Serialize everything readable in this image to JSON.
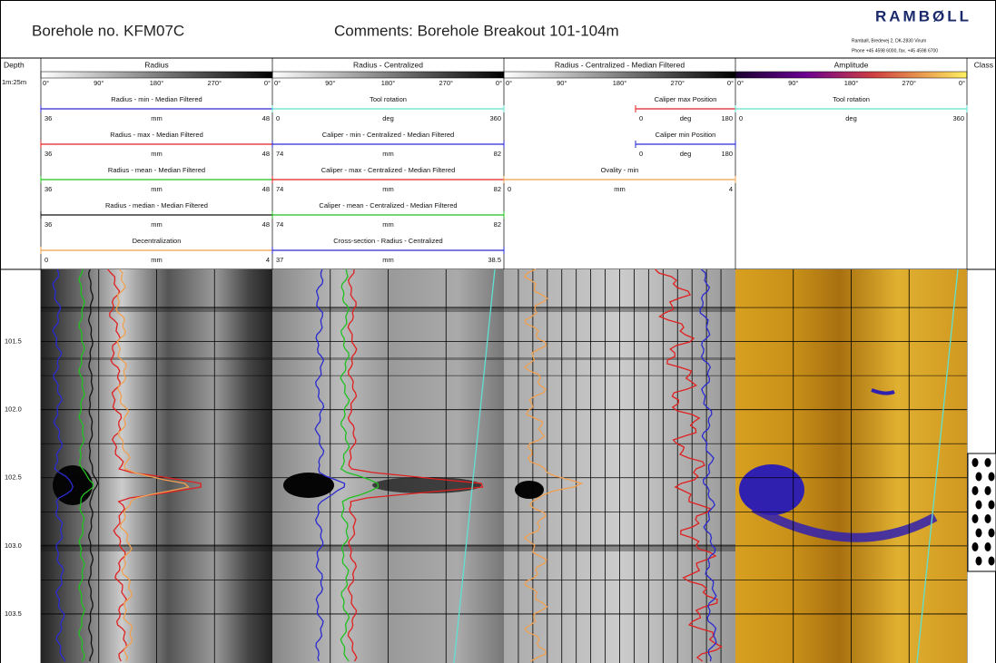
{
  "header": {
    "title": "Borehole no. KFM07C",
    "comments": "Comments:  Borehole Breakout 101-104m",
    "logo": "RAMBØLL",
    "address": "Rambøll, Bredevej 2, DK-2830 Virum",
    "phone": "Phone +45 4598 6000, fax. +45 4598 6700"
  },
  "depth": {
    "label": "Depth",
    "scale": "1m:25m",
    "ylim": [
      100.97,
      103.86
    ],
    "yticks": [
      {
        "value": 101.5,
        "label": "101.5"
      },
      {
        "value": 102,
        "label": "102.0"
      },
      {
        "value": 102.5,
        "label": "102.5"
      },
      {
        "value": 103,
        "label": "103.0"
      },
      {
        "value": 103.5,
        "label": "103.5"
      }
    ]
  },
  "angle_labels": [
    "0°",
    "90°",
    "180°",
    "270°",
    "0°"
  ],
  "class_label": "Class",
  "tracks": [
    {
      "name": "Radius",
      "curves": [
        {
          "title": "Radius - min - Median Filtered",
          "color": "#2a2ad0",
          "min": 36,
          "unit": "mm",
          "max": 48
        },
        {
          "title": "Radius - max - Median Filtered",
          "color": "#e02020",
          "min": 36,
          "unit": "mm",
          "max": 48
        },
        {
          "title": "Radius - mean - Median Filtered",
          "color": "#20c020",
          "min": 36,
          "unit": "mm",
          "max": 48
        },
        {
          "title": "Radius - median - Median Filtered",
          "color": "#111111",
          "min": 36,
          "unit": "mm",
          "max": 48
        },
        {
          "title": "Decentralization",
          "color": "#f0a050",
          "min": 0,
          "unit": "mm",
          "max": 4
        }
      ]
    },
    {
      "name": "Radius - Centralized",
      "curves": [
        {
          "title": "Tool rotation",
          "color": "#60e0d0",
          "min": 0,
          "unit": "deg",
          "max": 360
        },
        {
          "title": "Caliper - min - Centralized - Median Filtered",
          "color": "#2a2ad0",
          "min": 74,
          "unit": "mm",
          "max": 82
        },
        {
          "title": "Caliper - max - Centralized - Median Filtered",
          "color": "#e02020",
          "min": 74,
          "unit": "mm",
          "max": 82
        },
        {
          "title": "Caliper - mean - Centralized - Median Filtered",
          "color": "#20c020",
          "min": 74,
          "unit": "mm",
          "max": 82
        },
        {
          "title": "Cross-section - Radius - Centralized",
          "color": "#2a2ad0",
          "min": 37,
          "unit": "mm",
          "max": 38.5
        }
      ]
    },
    {
      "name": "Radius - Centralized - Median Filtered",
      "curves": [
        {
          "title": "Caliper max Position",
          "color": "#e02020",
          "min": 0,
          "unit": "deg",
          "max": 180
        },
        {
          "title": "Caliper min Position",
          "color": "#2a2ad0",
          "min": 0,
          "unit": "deg",
          "max": 180
        },
        {
          "title": "Ovality - min",
          "color": "#f0a050",
          "min": 0,
          "unit": "mm",
          "max": 4
        }
      ]
    },
    {
      "name": "Amplitude",
      "curves": [
        {
          "title": "Tool rotation",
          "color": "#60e0d0",
          "min": 0,
          "unit": "deg",
          "max": 360
        }
      ]
    }
  ]
}
